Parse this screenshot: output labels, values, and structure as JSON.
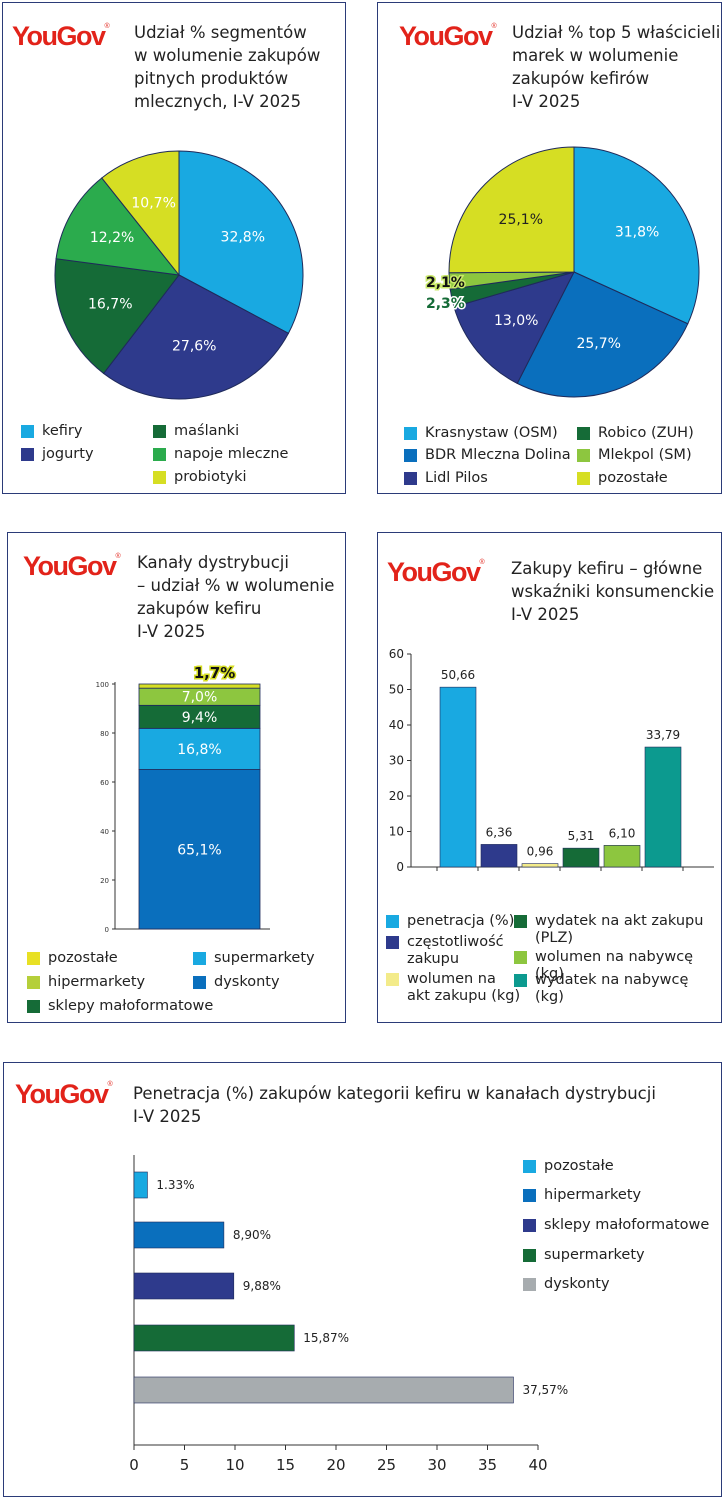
{
  "logo": {
    "text": "YouGov",
    "mark": "®"
  },
  "colors": {
    "c1": "#19a9e1",
    "c2": "#2e3a8c",
    "c3": "#156b37",
    "c4": "#4caf50",
    "c5": "#8dc63f",
    "c6": "#d6de23",
    "c7": "#0a6fbd",
    "c8": "#0c9a8f",
    "c9": "#a7acaf",
    "c10": "#f3eb8a",
    "green_mid": "#2bab4d"
  },
  "chart_data": [
    {
      "type": "pie",
      "title": "Udział % segmentów\nw wolumenie zakupów\npitnych produktów\nmlecznych, I-V 2025",
      "categories": [
        "kefiry",
        "jogurty",
        "maślanki",
        "napoje mleczne",
        "probiotyki"
      ],
      "values": [
        32.8,
        27.6,
        16.7,
        12.2,
        10.7
      ],
      "labels": [
        "32,8%",
        "27,6%",
        "16,7%",
        "12,2%",
        "10,7%"
      ],
      "legend": [
        "kefiry",
        "jogurty",
        "maślanki",
        "napoje mleczne",
        "probiotyki"
      ]
    },
    {
      "type": "pie",
      "title": "Udział % top 5 właścicieli\nmarek w wolumenie\nzakupów kefirów\nI-V 2025",
      "categories": [
        "Krasnystaw (OSM)",
        "BDR Mleczna Dolina",
        "Lidl Pilos",
        "Robico (ZUH)",
        "Mlekpol (SM)",
        "pozostałe"
      ],
      "values": [
        31.8,
        25.7,
        13.0,
        2.3,
        2.1,
        25.1
      ],
      "labels": [
        "31,8%",
        "25,7%",
        "13,0%",
        "2,3%",
        "2,1%",
        "25,1%"
      ],
      "legend": [
        "Krasnystaw (OSM)",
        "BDR Mleczna Dolina",
        "Lidl Pilos",
        "Robico (ZUH)",
        "Mlekpol (SM)",
        "pozostałe"
      ]
    },
    {
      "type": "bar",
      "stacked": true,
      "title": "Kanały dystrybucji\n– udział % w wolumenie\nzakupów kefiru\nI-V 2025",
      "categories": [
        "dyskonty",
        "supermarkety",
        "sklepy małoformatowe",
        "hipermarkety",
        "pozostałe"
      ],
      "values": [
        65.1,
        16.8,
        9.4,
        7.0,
        1.7
      ],
      "labels": [
        "65,1%",
        "16,8%",
        "9,4%",
        "7,0%",
        "1,7%"
      ],
      "ylim": [
        0,
        100
      ],
      "yticks": [
        "0",
        "20",
        "40",
        "60",
        "80",
        "100"
      ],
      "legend": [
        "pozostałe",
        "supermarkety",
        "hipermarkety",
        "dyskonty",
        "sklepy małoformatowe"
      ]
    },
    {
      "type": "bar",
      "title": "Zakupy kefiru – główne\nwskaźniki konsumenckie\nI-V 2025",
      "categories": [
        "penetracja (%)",
        "częstotliwość zakupu",
        "wolumen na akt zakupu (kg)",
        "wydatek na akt zakupu (PLZ)",
        "wolumen na nabywcę (kg)",
        "wydatek na nabywcę (kg)"
      ],
      "values": [
        50.66,
        6.36,
        0.96,
        5.31,
        6.1,
        33.79
      ],
      "labels": [
        "50,66",
        "6,36",
        "0,96",
        "5,31",
        "6,10",
        "33,79"
      ],
      "ylim": [
        0,
        60
      ],
      "yticks": [
        "0",
        "10",
        "20",
        "30",
        "40",
        "50",
        "60"
      ],
      "legend": [
        "penetracja (%)",
        "częstotliwość\nzakupu",
        "wolumen na\nakt zakupu (kg)",
        "wydatek na akt zakupu\n(PLZ)",
        "wolumen na nabywcę (kg)",
        "wydatek na nabywcę (kg)"
      ]
    },
    {
      "type": "bar",
      "orientation": "horizontal",
      "title": "Penetracja (%) zakupów kategorii kefiru w kanałach dystrybucji\nI-V 2025",
      "categories": [
        "pozostałe",
        "hipermarkety",
        "sklepy małoformatowe",
        "supermarkety",
        "dyskonty"
      ],
      "values": [
        1.33,
        8.9,
        9.88,
        15.87,
        37.57
      ],
      "labels": [
        "1.33%",
        "8,90%",
        "9,88%",
        "15,87%",
        "37,57%"
      ],
      "xlim": [
        0,
        40
      ],
      "xticks": [
        "0",
        "5",
        "10",
        "15",
        "20",
        "25",
        "30",
        "35",
        "40"
      ],
      "legend": [
        "pozostałe",
        "hipermarkety",
        "sklepy małoformatowe",
        "supermarkety",
        "dyskonty"
      ]
    }
  ]
}
